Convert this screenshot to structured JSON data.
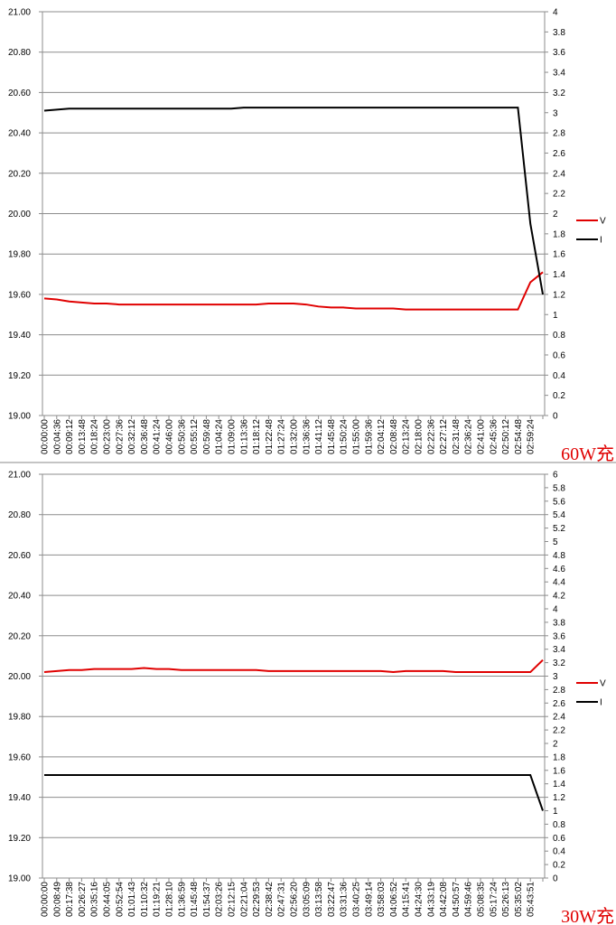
{
  "chart_data": [
    {
      "type": "line",
      "annotation": "60W充",
      "categories": [
        "00:00:00",
        "00:04:36",
        "00:09:12",
        "00:13:48",
        "00:18:24",
        "00:23:00",
        "00:27:36",
        "00:32:12",
        "00:36:48",
        "00:41:24",
        "00:46:00",
        "00:50:36",
        "00:55:12",
        "00:59:48",
        "01:04:24",
        "01:09:00",
        "01:13:36",
        "01:18:12",
        "01:22:48",
        "01:27:24",
        "01:32:00",
        "01:36:36",
        "01:41:12",
        "01:45:48",
        "01:50:24",
        "01:55:00",
        "01:59:36",
        "02:04:12",
        "02:08:48",
        "02:13:24",
        "02:18:00",
        "02:22:36",
        "02:27:12",
        "02:31:48",
        "02:36:24",
        "02:41:00",
        "02:45:36",
        "02:50:12",
        "02:54:48",
        "02:59:24",
        null
      ],
      "ylim": [
        19,
        21
      ],
      "yticks": [
        {
          "value": 19,
          "label": "19.00"
        },
        {
          "value": 19.2,
          "label": "19.20"
        },
        {
          "value": 19.4,
          "label": "19.40"
        },
        {
          "value": 19.6,
          "label": "19.60"
        },
        {
          "value": 19.8,
          "label": "19.80"
        },
        {
          "value": 20,
          "label": "20.00"
        },
        {
          "value": 20.2,
          "label": "20.20"
        },
        {
          "value": 20.4,
          "label": "20.40"
        },
        {
          "value": 20.6,
          "label": "20.60"
        },
        {
          "value": 20.8,
          "label": "20.80"
        },
        {
          "value": 21,
          "label": "21.00"
        }
      ],
      "y2lim": [
        0,
        4
      ],
      "y2ticks": [
        0,
        0.2,
        0.4,
        0.6,
        0.8,
        1,
        1.2,
        1.4,
        1.6,
        1.8,
        2,
        2.2,
        2.4,
        2.6,
        2.8,
        3,
        3.2,
        3.4,
        3.6,
        3.8,
        4
      ],
      "grid": true,
      "legend": "right",
      "series": [
        {
          "name": "V",
          "color": "#e00000",
          "values": [
            19.58,
            19.575,
            19.565,
            19.56,
            19.555,
            19.555,
            19.55,
            19.55,
            19.55,
            19.55,
            19.55,
            19.55,
            19.55,
            19.55,
            19.55,
            19.55,
            19.55,
            19.55,
            19.555,
            19.555,
            19.555,
            19.55,
            19.54,
            19.535,
            19.535,
            19.53,
            19.53,
            19.53,
            19.53,
            19.525,
            19.525,
            19.525,
            19.525,
            19.525,
            19.525,
            19.525,
            19.525,
            19.525,
            19.525,
            19.66,
            19.71
          ]
        },
        {
          "name": "I",
          "color": "#000000",
          "axis": "y2",
          "values": [
            3.02,
            3.03,
            3.04,
            3.04,
            3.04,
            3.04,
            3.04,
            3.04,
            3.04,
            3.04,
            3.04,
            3.04,
            3.04,
            3.04,
            3.04,
            3.04,
            3.05,
            3.05,
            3.05,
            3.05,
            3.05,
            3.05,
            3.05,
            3.05,
            3.05,
            3.05,
            3.05,
            3.05,
            3.05,
            3.05,
            3.05,
            3.05,
            3.05,
            3.05,
            3.05,
            3.05,
            3.05,
            3.05,
            3.05,
            1.9,
            1.2
          ]
        }
      ]
    },
    {
      "type": "line",
      "annotation": "30W充",
      "categories": [
        "00:00:00",
        "00:08:49",
        "00:17:38",
        "00:26:27",
        "00:35:16",
        "00:44:05",
        "00:52:54",
        "01:01:43",
        "01:10:32",
        "01:19:21",
        "01:28:10",
        "01:36:59",
        "01:45:48",
        "01:54:37",
        "02:03:26",
        "02:12:15",
        "02:21:04",
        "02:29:53",
        "02:38:42",
        "02:47:31",
        "02:56:20",
        "03:05:09",
        "03:13:58",
        "03:22:47",
        "03:31:36",
        "03:40:25",
        "03:49:14",
        "03:58:03",
        "04:06:52",
        "04:15:41",
        "04:24:30",
        "04:33:19",
        "04:42:08",
        "04:50:57",
        "04:59:46",
        "05:08:35",
        "05:17:24",
        "05:26:13",
        "05:35:02",
        "05:43:51",
        null
      ],
      "ylim": [
        19,
        21
      ],
      "yticks": [
        {
          "value": 19,
          "label": "19.00"
        },
        {
          "value": 19.2,
          "label": "19.20"
        },
        {
          "value": 19.4,
          "label": "19.40"
        },
        {
          "value": 19.6,
          "label": "19.60"
        },
        {
          "value": 19.8,
          "label": "19.80"
        },
        {
          "value": 20,
          "label": "20.00"
        },
        {
          "value": 20.2,
          "label": "20.20"
        },
        {
          "value": 20.4,
          "label": "20.40"
        },
        {
          "value": 20.6,
          "label": "20.60"
        },
        {
          "value": 20.8,
          "label": "20.80"
        },
        {
          "value": 21,
          "label": "21.00"
        }
      ],
      "y2lim": [
        0,
        6
      ],
      "y2ticks": [
        0,
        0.2,
        0.4,
        0.6,
        0.8,
        1,
        1.2,
        1.4,
        1.6,
        1.8,
        2,
        2.2,
        2.4,
        2.6,
        2.8,
        3,
        3.2,
        3.4,
        3.6,
        3.8,
        4,
        4.2,
        4.4,
        4.6,
        4.8,
        5,
        5.2,
        5.4,
        5.6,
        5.8,
        6
      ],
      "grid": true,
      "legend": "right",
      "series": [
        {
          "name": "V",
          "color": "#e00000",
          "values": [
            20.02,
            20.025,
            20.03,
            20.03,
            20.035,
            20.035,
            20.035,
            20.035,
            20.04,
            20.035,
            20.035,
            20.03,
            20.03,
            20.03,
            20.03,
            20.03,
            20.03,
            20.03,
            20.025,
            20.025,
            20.025,
            20.025,
            20.025,
            20.025,
            20.025,
            20.025,
            20.025,
            20.025,
            20.02,
            20.025,
            20.025,
            20.025,
            20.025,
            20.02,
            20.02,
            20.02,
            20.02,
            20.02,
            20.02,
            20.02,
            20.08
          ]
        },
        {
          "name": "I",
          "color": "#000000",
          "axis": "y2",
          "values": [
            1.53,
            1.53,
            1.53,
            1.53,
            1.53,
            1.53,
            1.53,
            1.53,
            1.53,
            1.53,
            1.53,
            1.53,
            1.53,
            1.53,
            1.53,
            1.53,
            1.53,
            1.53,
            1.53,
            1.53,
            1.53,
            1.53,
            1.53,
            1.53,
            1.53,
            1.53,
            1.53,
            1.53,
            1.53,
            1.53,
            1.53,
            1.53,
            1.53,
            1.53,
            1.53,
            1.53,
            1.53,
            1.53,
            1.53,
            1.53,
            1.0
          ]
        }
      ]
    }
  ]
}
